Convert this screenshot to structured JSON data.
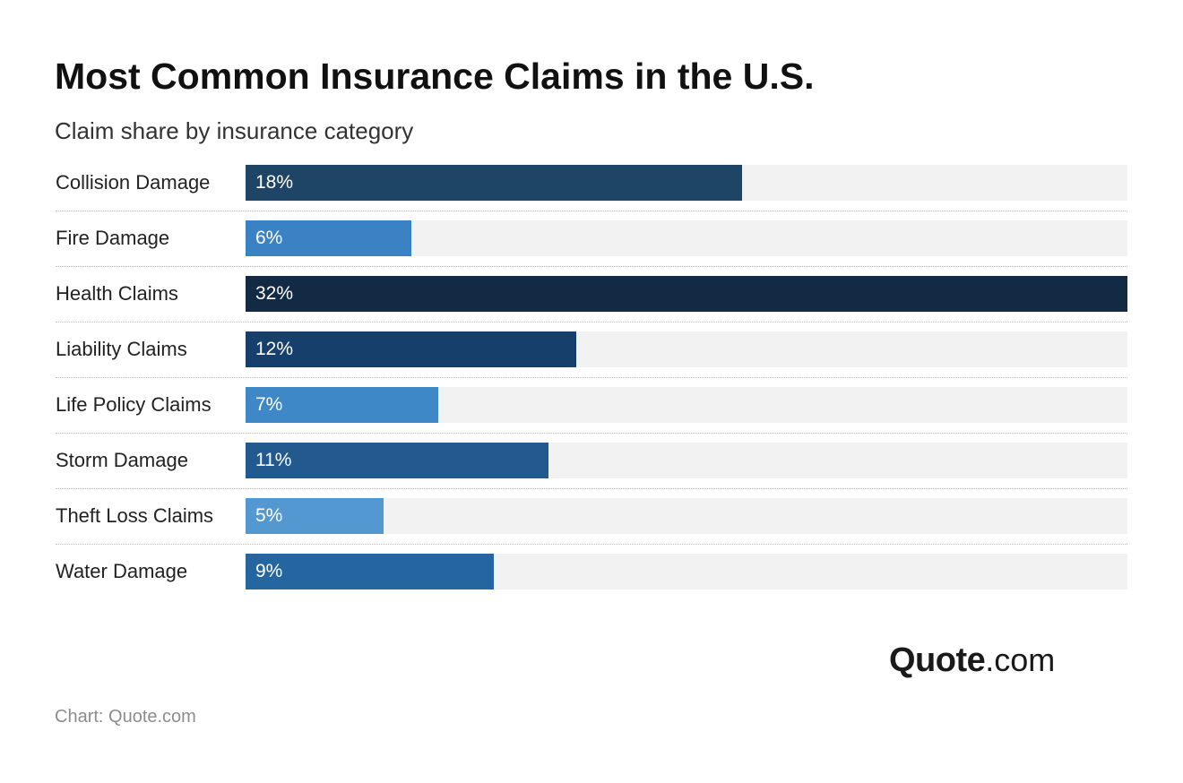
{
  "title": "Most Common Insurance Claims in the U.S.",
  "subtitle": "Claim share by insurance category",
  "source": "Chart: Quote.com",
  "logo": {
    "strong": "Quote",
    "light": ".com"
  },
  "colors": {
    "background": "#ffffff",
    "track": "#f2f2f2",
    "bar_label": "#ffffff"
  },
  "chart_data": {
    "type": "bar",
    "orientation": "horizontal",
    "categories": [
      "Collision Damage",
      "Fire Damage",
      "Health Claims",
      "Liability Claims",
      "Life Policy Claims",
      "Storm Damage",
      "Theft Loss Claims",
      "Water Damage"
    ],
    "values": [
      18,
      6,
      32,
      12,
      7,
      11,
      5,
      9
    ],
    "value_labels": [
      "18%",
      "6%",
      "32%",
      "12%",
      "7%",
      "11%",
      "5%",
      "9%"
    ],
    "bar_colors": [
      "#1e4466",
      "#3b82c4",
      "#132a45",
      "#173f6c",
      "#3e88c7",
      "#225a8f",
      "#5498d1",
      "#2566a1"
    ],
    "unit": "%",
    "xlim": [
      0,
      32
    ],
    "grid": false,
    "legend": "none"
  }
}
